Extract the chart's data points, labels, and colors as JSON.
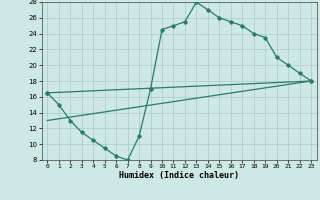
{
  "xlabel": "Humidex (Indice chaleur)",
  "ylabel": "",
  "bg_color": "#cde8e5",
  "grid_color": "#aecfcc",
  "line_color": "#2a7a6e",
  "xlim": [
    -0.5,
    23.5
  ],
  "ylim": [
    8,
    28
  ],
  "xticks": [
    0,
    1,
    2,
    3,
    4,
    5,
    6,
    7,
    8,
    9,
    10,
    11,
    12,
    13,
    14,
    15,
    16,
    17,
    18,
    19,
    20,
    21,
    22,
    23
  ],
  "yticks": [
    8,
    10,
    12,
    14,
    16,
    18,
    20,
    22,
    24,
    26,
    28
  ],
  "line1_x": [
    0,
    1,
    2,
    3,
    4,
    5,
    6,
    7,
    8,
    9,
    10,
    11,
    12,
    13,
    14,
    15,
    16,
    17,
    18,
    19,
    20,
    21,
    22,
    23
  ],
  "line1_y": [
    16.5,
    15.0,
    13.0,
    11.5,
    10.5,
    9.5,
    8.5,
    8.0,
    11.0,
    17.0,
    24.5,
    25.0,
    25.5,
    28.0,
    27.0,
    26.0,
    25.5,
    25.0,
    24.0,
    23.5,
    21.0,
    20.0,
    19.0,
    18.0
  ],
  "line2_x": [
    0,
    23
  ],
  "line2_y": [
    16.5,
    18.0
  ],
  "line3_x": [
    0,
    23
  ],
  "line3_y": [
    13.0,
    18.0
  ]
}
